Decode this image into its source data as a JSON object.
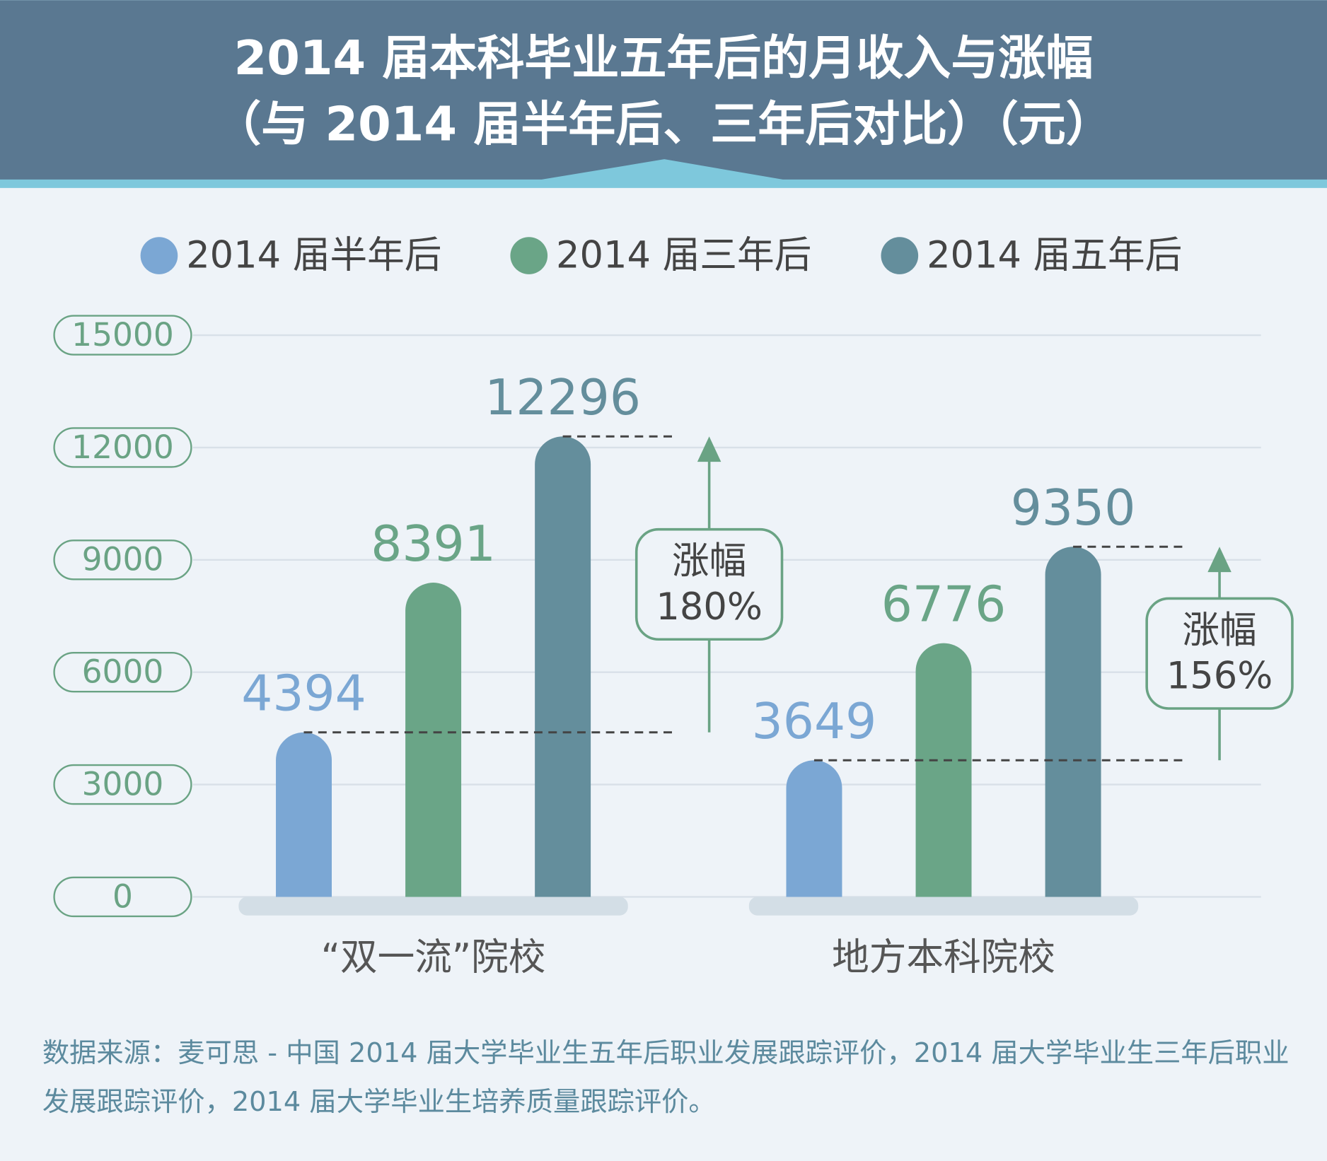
{
  "chart_data": {
    "type": "bar",
    "title": "2014 届本科毕业五年后的月收入与涨幅",
    "subtitle": "（与 2014 届半年后、三年后对比）（元）",
    "categories": [
      "“双一流”院校",
      "地方本科院校"
    ],
    "series": [
      {
        "name": "2014 届半年后",
        "color": "#7ba7d4",
        "values": [
          4394,
          3649
        ]
      },
      {
        "name": "2014 届三年后",
        "color": "#6aa587",
        "values": [
          8391,
          6776
        ]
      },
      {
        "name": "2014 届五年后",
        "color": "#648e9c",
        "values": [
          12296,
          9350
        ]
      }
    ],
    "ylim": [
      0,
      15000
    ],
    "yticks": [
      0,
      3000,
      6000,
      9000,
      12000,
      15000
    ],
    "grid": true,
    "legend": "top",
    "growth": {
      "label": "涨幅",
      "values": [
        180,
        156
      ],
      "value_labels": [
        "180%",
        "156%"
      ]
    },
    "source": "数据来源：麦可思 - 中国 2014 届大学毕业生五年后职业发展跟踪评价，2014 届大学毕业生三年后职业发展跟踪评价，2014 届大学毕业生培养质量跟踪评价。"
  }
}
